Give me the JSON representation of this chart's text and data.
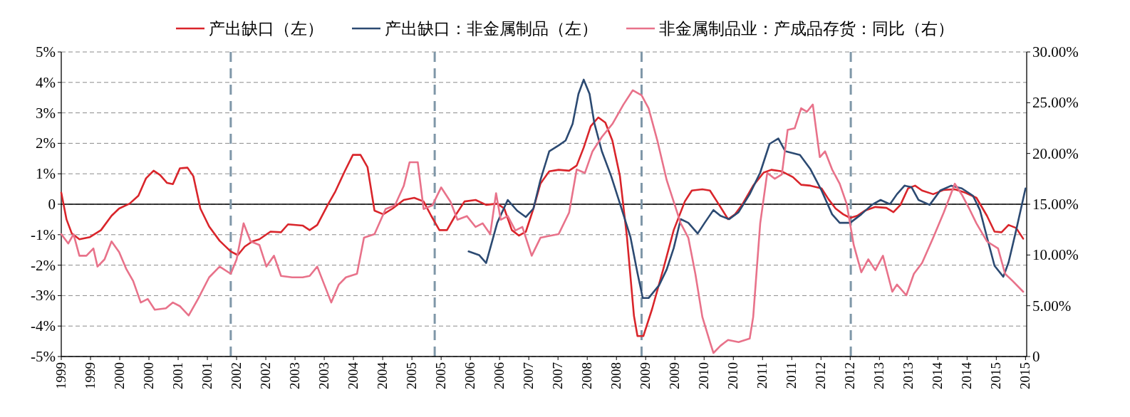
{
  "chart_data": {
    "type": "line",
    "legend": "top",
    "grid": "y",
    "line_style": "solid",
    "xlim": [
      1999,
      2015.52
    ],
    "xticks": [
      {
        "value": 1999.0,
        "label": "1999"
      },
      {
        "value": 1999.5,
        "label": "1999"
      },
      {
        "value": 2000.0,
        "label": "2000"
      },
      {
        "value": 2000.5,
        "label": "2000"
      },
      {
        "value": 2001.0,
        "label": "2001"
      },
      {
        "value": 2001.5,
        "label": "2001"
      },
      {
        "value": 2002.0,
        "label": "2002"
      },
      {
        "value": 2002.5,
        "label": "2002"
      },
      {
        "value": 2003.0,
        "label": "2003"
      },
      {
        "value": 2003.5,
        "label": "2003"
      },
      {
        "value": 2004.0,
        "label": "2004"
      },
      {
        "value": 2004.5,
        "label": "2004"
      },
      {
        "value": 2005.0,
        "label": "2005"
      },
      {
        "value": 2005.5,
        "label": "2005"
      },
      {
        "value": 2006.0,
        "label": "2006"
      },
      {
        "value": 2006.5,
        "label": "2006"
      },
      {
        "value": 2007.0,
        "label": "2007"
      },
      {
        "value": 2007.5,
        "label": "2007"
      },
      {
        "value": 2008.0,
        "label": "2008"
      },
      {
        "value": 2008.5,
        "label": "2008"
      },
      {
        "value": 2009.0,
        "label": "2009"
      },
      {
        "value": 2009.5,
        "label": "2009"
      },
      {
        "value": 2010.0,
        "label": "2010"
      },
      {
        "value": 2010.5,
        "label": "2010"
      },
      {
        "value": 2011.0,
        "label": "2011"
      },
      {
        "value": 2011.5,
        "label": "2011"
      },
      {
        "value": 2012.0,
        "label": "2012"
      },
      {
        "value": 2012.5,
        "label": "2012"
      },
      {
        "value": 2013.0,
        "label": "2013"
      },
      {
        "value": 2013.5,
        "label": "2013"
      },
      {
        "value": 2014.0,
        "label": "2014"
      },
      {
        "value": 2014.5,
        "label": "2014"
      },
      {
        "value": 2015.0,
        "label": "2015"
      },
      {
        "value": 2015.5,
        "label": "2015"
      }
    ],
    "ylim": [
      -5,
      5
    ],
    "yticks": [
      {
        "value": -5,
        "label": "-5%"
      },
      {
        "value": -4,
        "label": "-4%"
      },
      {
        "value": -3,
        "label": "-3%"
      },
      {
        "value": -2,
        "label": "-2%"
      },
      {
        "value": -1,
        "label": "-1%"
      },
      0,
      {
        "value": 1,
        "label": "1%"
      },
      {
        "value": 2,
        "label": "2%"
      },
      {
        "value": 3,
        "label": "3%"
      },
      {
        "value": 4,
        "label": "4%"
      },
      {
        "value": 5,
        "label": "5%"
      }
    ],
    "y2lim": [
      0,
      30
    ],
    "y2ticks": [
      0,
      {
        "value": 5,
        "label": "5.00%"
      },
      {
        "value": 10,
        "label": "10.00%"
      },
      {
        "value": 15,
        "label": "15.00%"
      },
      {
        "value": 20,
        "label": "20.00%"
      },
      {
        "value": 25,
        "label": "25.00%"
      },
      {
        "value": 30,
        "label": "30.00%"
      }
    ],
    "ref_lines": [
      {
        "axis": "y",
        "value": 0,
        "color": "#000000",
        "line_style": "solid"
      },
      {
        "axis": "x",
        "value": 2001.9,
        "color": "#7f97a8",
        "line_style": "dashed"
      },
      {
        "axis": "x",
        "value": 2005.39,
        "color": "#7f97a8",
        "line_style": "dashed"
      },
      {
        "axis": "x",
        "value": 2008.93,
        "color": "#7f97a8",
        "line_style": "dashed"
      },
      {
        "axis": "x",
        "value": 2012.51,
        "color": "#7f97a8",
        "line_style": "dashed"
      }
    ],
    "series": [
      {
        "name": "产出缺口（左）",
        "color": "#d9252b",
        "x": [
          1999.0,
          1999.09,
          1999.18,
          1999.31,
          1999.49,
          1999.68,
          1999.86,
          1999.99,
          2000.17,
          2000.32,
          2000.45,
          2000.58,
          2000.69,
          2000.81,
          2000.91,
          2001.03,
          2001.16,
          2001.26,
          2001.38,
          2001.53,
          2001.71,
          2001.9,
          2002.02,
          2002.14,
          2002.27,
          2002.39,
          2002.58,
          2002.76,
          2002.88,
          2003.13,
          2003.25,
          2003.38,
          2003.56,
          2003.69,
          2003.85,
          2003.99,
          2004.12,
          2004.24,
          2004.36,
          2004.51,
          2004.67,
          2004.86,
          2005.04,
          2005.2,
          2005.33,
          2005.47,
          2005.6,
          2005.74,
          2005.9,
          2006.09,
          2006.27,
          2006.46,
          2006.58,
          2006.71,
          2006.83,
          2006.95,
          2007.08,
          2007.2,
          2007.35,
          2007.51,
          2007.69,
          2007.82,
          2007.94,
          2008.06,
          2008.19,
          2008.31,
          2008.43,
          2008.56,
          2008.68,
          2008.8,
          2008.86,
          2008.96,
          2009.11,
          2009.3,
          2009.48,
          2009.67,
          2009.79,
          2009.97,
          2010.1,
          2010.22,
          2010.41,
          2010.53,
          2010.65,
          2010.84,
          2011.02,
          2011.15,
          2011.33,
          2011.52,
          2011.66,
          2011.82,
          2012.01,
          2012.13,
          2012.25,
          2012.38,
          2012.5,
          2012.62,
          2012.75,
          2012.93,
          2013.12,
          2013.24,
          2013.36,
          2013.49,
          2013.61,
          2013.73,
          2013.92,
          2014.1,
          2014.29,
          2014.47,
          2014.66,
          2014.84,
          2014.97,
          2015.09,
          2015.21,
          2015.34,
          2015.46
        ],
        "values": [
          0.38,
          -0.5,
          -0.96,
          -1.15,
          -1.08,
          -0.85,
          -0.38,
          -0.14,
          0.02,
          0.28,
          0.85,
          1.1,
          0.96,
          0.7,
          0.66,
          1.18,
          1.2,
          0.92,
          -0.14,
          -0.73,
          -1.2,
          -1.55,
          -1.67,
          -1.39,
          -1.22,
          -1.15,
          -0.9,
          -0.92,
          -0.66,
          -0.7,
          -0.85,
          -0.68,
          -0.02,
          0.42,
          1.08,
          1.62,
          1.62,
          1.22,
          -0.21,
          -0.33,
          -0.14,
          0.14,
          0.21,
          0.09,
          -0.38,
          -0.85,
          -0.85,
          -0.38,
          0.09,
          0.14,
          -0.02,
          0.02,
          -0.14,
          -0.85,
          -1.03,
          -0.9,
          -0.14,
          0.68,
          1.08,
          1.13,
          1.1,
          1.27,
          1.86,
          2.56,
          2.85,
          2.68,
          2.09,
          0.92,
          -1.08,
          -3.67,
          -4.33,
          -4.33,
          -3.44,
          -2.14,
          -0.85,
          0.09,
          0.45,
          0.49,
          0.45,
          0.09,
          -0.49,
          -0.33,
          -0.02,
          0.61,
          1.04,
          1.13,
          1.08,
          0.89,
          0.64,
          0.61,
          0.52,
          0.16,
          -0.14,
          -0.33,
          -0.45,
          -0.38,
          -0.21,
          -0.09,
          -0.12,
          -0.26,
          -0.02,
          0.52,
          0.61,
          0.45,
          0.33,
          0.47,
          0.49,
          0.38,
          0.21,
          -0.38,
          -0.9,
          -0.92,
          -0.68,
          -0.78,
          -1.13
        ]
      },
      {
        "name": "产出缺口：非金属制品（左）",
        "color": "#2c4a72",
        "x": [
          2005.97,
          2006.15,
          2006.27,
          2006.46,
          2006.64,
          2006.8,
          2006.95,
          2007.08,
          2007.2,
          2007.35,
          2007.51,
          2007.63,
          2007.75,
          2007.85,
          2007.94,
          2008.04,
          2008.12,
          2008.25,
          2008.41,
          2008.56,
          2008.74,
          2008.86,
          2008.95,
          2009.05,
          2009.23,
          2009.36,
          2009.48,
          2009.6,
          2009.73,
          2009.89,
          2010.01,
          2010.16,
          2010.28,
          2010.43,
          2010.59,
          2010.78,
          2010.96,
          2011.12,
          2011.27,
          2011.39,
          2011.64,
          2011.82,
          2012.01,
          2012.19,
          2012.32,
          2012.5,
          2012.69,
          2012.87,
          2013.02,
          2013.18,
          2013.3,
          2013.43,
          2013.55,
          2013.67,
          2013.86,
          2014.04,
          2014.23,
          2014.41,
          2014.6,
          2014.72,
          2014.84,
          2014.97,
          2015.12,
          2015.21,
          2015.34,
          2015.5
        ],
        "values": [
          -1.55,
          -1.67,
          -1.93,
          -0.61,
          0.14,
          -0.21,
          -0.42,
          -0.14,
          0.8,
          1.74,
          1.93,
          2.09,
          2.64,
          3.62,
          4.09,
          3.62,
          2.68,
          1.74,
          0.92,
          0.02,
          -1.08,
          -2.26,
          -3.08,
          -3.08,
          -2.66,
          -2.14,
          -1.44,
          -0.49,
          -0.61,
          -0.96,
          -0.61,
          -0.19,
          -0.38,
          -0.49,
          -0.26,
          0.33,
          1.04,
          1.98,
          2.16,
          1.74,
          1.62,
          1.15,
          0.45,
          -0.33,
          -0.61,
          -0.61,
          -0.33,
          -0.02,
          0.14,
          0.0,
          0.33,
          0.61,
          0.56,
          0.14,
          -0.02,
          0.45,
          0.61,
          0.52,
          0.28,
          -0.19,
          -1.08,
          -2.02,
          -2.38,
          -1.91,
          -0.85,
          0.52
        ]
      },
      {
        "name": "非金属制品业：产成品存货：同比（右）",
        "color": "#e8728a",
        "axis": "y2",
        "x": [
          1999.0,
          1999.12,
          1999.21,
          1999.31,
          1999.43,
          1999.55,
          1999.62,
          1999.74,
          1999.86,
          1999.99,
          2000.11,
          2000.23,
          2000.36,
          2000.48,
          2000.6,
          2000.79,
          2000.91,
          2001.03,
          2001.18,
          2001.34,
          2001.53,
          2001.71,
          2001.9,
          2002.0,
          2002.12,
          2002.24,
          2002.39,
          2002.51,
          2002.64,
          2002.76,
          2002.95,
          2003.13,
          2003.25,
          2003.38,
          2003.5,
          2003.62,
          2003.75,
          2003.87,
          2004.06,
          2004.18,
          2004.36,
          2004.55,
          2004.71,
          2004.86,
          2004.96,
          2005.1,
          2005.2,
          2005.35,
          2005.5,
          2005.66,
          2005.78,
          2005.94,
          2006.09,
          2006.21,
          2006.34,
          2006.44,
          2006.52,
          2006.64,
          2006.77,
          2006.89,
          2007.05,
          2007.2,
          2007.32,
          2007.51,
          2007.69,
          2007.82,
          2007.96,
          2008.09,
          2008.25,
          2008.43,
          2008.62,
          2008.78,
          2008.93,
          2009.05,
          2009.2,
          2009.36,
          2009.6,
          2009.73,
          2009.85,
          2009.97,
          2010.1,
          2010.16,
          2010.28,
          2010.41,
          2010.59,
          2010.78,
          2010.84,
          2010.96,
          2011.08,
          2011.21,
          2011.33,
          2011.43,
          2011.55,
          2011.66,
          2011.76,
          2011.86,
          2011.98,
          2012.07,
          2012.19,
          2012.32,
          2012.44,
          2012.56,
          2012.69,
          2012.81,
          2012.93,
          2013.06,
          2013.22,
          2013.3,
          2013.46,
          2013.59,
          2013.73,
          2013.92,
          2014.1,
          2014.29,
          2014.41,
          2014.54,
          2014.66,
          2014.84,
          2015.03,
          2015.15,
          2015.28,
          2015.46
        ],
        "values": [
          12.05,
          11.13,
          12.05,
          9.93,
          9.93,
          10.64,
          8.86,
          9.57,
          11.34,
          10.28,
          8.65,
          7.44,
          5.32,
          5.67,
          4.61,
          4.75,
          5.32,
          4.96,
          4.04,
          5.67,
          7.8,
          8.86,
          8.15,
          9.57,
          13.12,
          11.34,
          10.99,
          8.86,
          9.93,
          7.94,
          7.8,
          7.8,
          7.94,
          8.86,
          7.09,
          5.32,
          7.09,
          7.8,
          8.15,
          11.7,
          12.05,
          14.53,
          14.89,
          16.8,
          19.14,
          19.14,
          14.53,
          14.89,
          16.66,
          15.24,
          13.47,
          13.83,
          12.76,
          13.12,
          12.05,
          16.09,
          13.47,
          13.83,
          12.41,
          12.76,
          9.93,
          11.7,
          11.84,
          12.05,
          14.18,
          18.43,
          18.08,
          20.21,
          21.62,
          22.9,
          24.82,
          26.23,
          25.74,
          24.46,
          21.27,
          17.37,
          13.12,
          11.7,
          8.15,
          3.9,
          1.42,
          0.35,
          1.06,
          1.63,
          1.42,
          1.77,
          3.9,
          13.12,
          18.08,
          17.51,
          17.94,
          22.33,
          22.48,
          24.46,
          24.11,
          24.82,
          19.64,
          20.21,
          18.43,
          17.02,
          15.03,
          10.99,
          8.3,
          9.57,
          8.51,
          9.93,
          6.38,
          7.09,
          6.03,
          8.15,
          9.22,
          11.7,
          14.18,
          17.02,
          15.95,
          14.53,
          13.12,
          11.34,
          10.64,
          8.15,
          7.44,
          6.38
        ]
      }
    ]
  }
}
